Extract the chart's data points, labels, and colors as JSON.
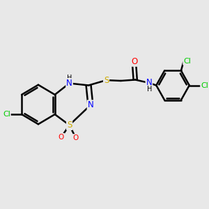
{
  "bg_color": "#e8e8e8",
  "atom_colors": {
    "C": "#000000",
    "N": "#0000ff",
    "O": "#ff0000",
    "S": "#ccaa00",
    "Cl": "#00cc00",
    "H": "#000000"
  },
  "bond_color": "#000000",
  "bond_width": 1.8,
  "font_size": 8.5,
  "figsize": [
    3.0,
    3.0
  ],
  "dpi": 100
}
